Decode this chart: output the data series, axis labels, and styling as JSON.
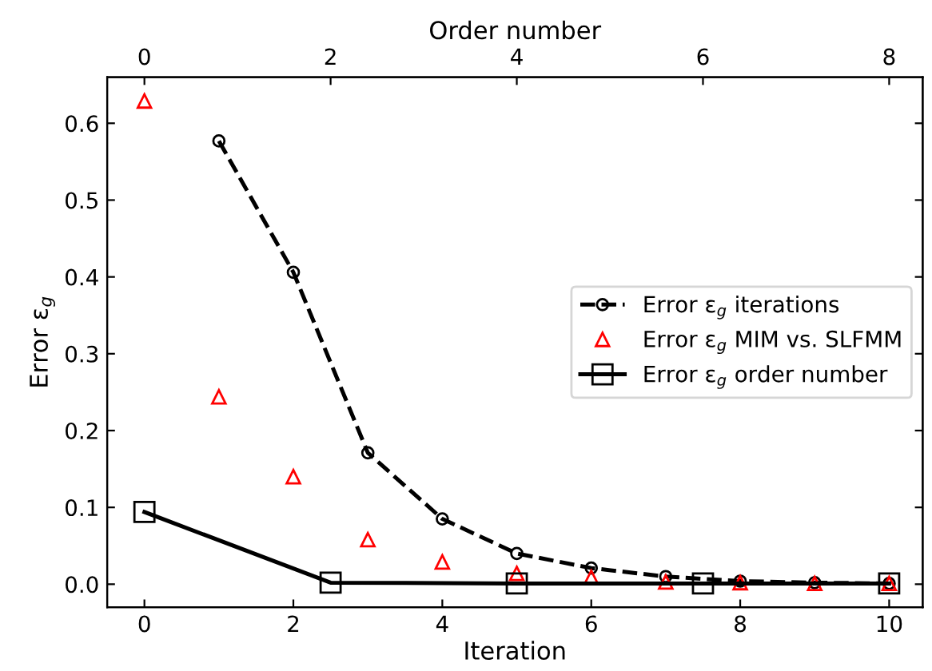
{
  "chart_data": {
    "type": "line",
    "xlabel": "Iteration",
    "x2label": "Order number",
    "ylabel": "Error ε$_{g}$",
    "xlim": [
      -0.5,
      10.45
    ],
    "xticks": [
      0,
      2,
      4,
      6,
      8,
      10
    ],
    "x2lim": [
      -0.4,
      8.36
    ],
    "x2ticks": [
      0,
      2,
      4,
      6,
      8
    ],
    "ylim": [
      -0.03,
      0.66
    ],
    "yticks": [
      {
        "value": 0,
        "label": "0.0"
      },
      0.1,
      0.2,
      0.3,
      0.4,
      0.5,
      0.6
    ],
    "grid": false,
    "legend": "center right",
    "series": [
      {
        "name": "Error ε$_{g}$ iterations",
        "color": "#000000",
        "marker": "circle",
        "line_style": "dashed",
        "x": [
          1,
          2,
          3,
          4,
          5,
          6,
          7,
          8,
          9,
          10
        ],
        "values": [
          0.577,
          0.406,
          0.171,
          0.085,
          0.04,
          0.021,
          0.01,
          0.004,
          0.002,
          0.001
        ]
      },
      {
        "name": "Error ε$_{g}$ MIM vs. SLFMM",
        "type": "scatter",
        "color": "#ff0000",
        "marker": "triangle",
        "x": [
          0,
          1,
          2,
          3,
          4,
          5,
          6,
          7,
          8,
          9,
          10
        ],
        "values": [
          0.629,
          0.244,
          0.14,
          0.058,
          0.029,
          0.014,
          0.009,
          0.003,
          0.002,
          0.001,
          0.001
        ]
      },
      {
        "name": "Error ε$_{g}$ order number",
        "color": "#000000",
        "marker": "square",
        "line_style": "solid",
        "axis": "x2",
        "x": [
          0,
          2,
          4,
          6,
          8
        ],
        "values": [
          0.094,
          0.002,
          0.001,
          0.001,
          0.001
        ]
      }
    ]
  }
}
